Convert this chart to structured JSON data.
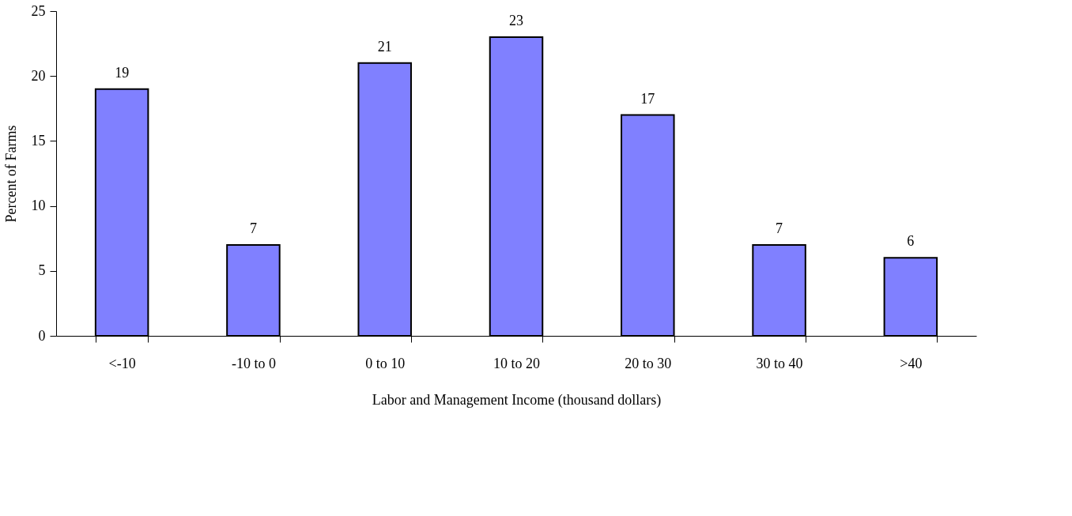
{
  "chart_data": {
    "type": "bar",
    "xlabel": "Labor and Management Income (thousand dollars)",
    "ylabel": "Percent of Farms",
    "categories": [
      "<-10",
      "-10 to 0",
      "0 to 10",
      "10 to 20",
      "20 to 30",
      "30 to 40",
      ">40"
    ],
    "values": [
      19,
      7,
      21,
      23,
      17,
      7,
      6
    ],
    "color": "#8080ff",
    "ylim": [
      0,
      25
    ],
    "yticks": [
      0,
      5,
      10,
      15,
      20,
      25
    ],
    "grid": false,
    "data_labels": true
  }
}
